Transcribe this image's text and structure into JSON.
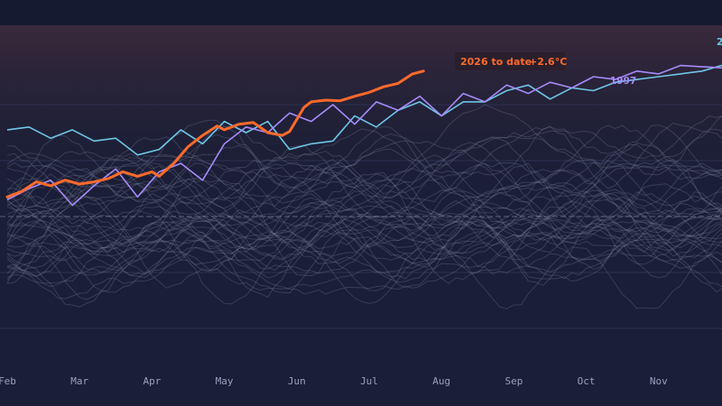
{
  "chart_data": {
    "type": "line",
    "x_labels": [
      "Feb",
      "Mar",
      "Apr",
      "May",
      "Jun",
      "Jul",
      "Aug",
      "Sep",
      "Oct",
      "Nov"
    ],
    "ylim": [
      -2,
      2.8
    ],
    "grid": true,
    "colors": {
      "background": "#1a1e36",
      "band_top": "#3b2a3c",
      "current": "#ff6a2a",
      "cyan_series": "#6ec6e6",
      "purple_series": "#a78bfa",
      "history": "#8a90a8",
      "grid": "#2c3150"
    },
    "highlight": {
      "name": "2026 to date",
      "label": "2026 to date",
      "value_label": "+2.6°C",
      "points": [
        [
          0,
          0.35
        ],
        [
          0.2,
          0.45
        ],
        [
          0.4,
          0.62
        ],
        [
          0.6,
          0.55
        ],
        [
          0.8,
          0.65
        ],
        [
          1.0,
          0.58
        ],
        [
          1.2,
          0.62
        ],
        [
          1.4,
          0.68
        ],
        [
          1.6,
          0.8
        ],
        [
          1.8,
          0.72
        ],
        [
          2.0,
          0.8
        ],
        [
          2.1,
          0.72
        ],
        [
          2.3,
          0.95
        ],
        [
          2.5,
          1.25
        ],
        [
          2.7,
          1.45
        ],
        [
          2.9,
          1.62
        ],
        [
          3.0,
          1.55
        ],
        [
          3.2,
          1.65
        ],
        [
          3.4,
          1.68
        ],
        [
          3.6,
          1.5
        ],
        [
          3.8,
          1.45
        ],
        [
          3.9,
          1.52
        ],
        [
          4.1,
          1.95
        ],
        [
          4.2,
          2.05
        ],
        [
          4.4,
          2.08
        ],
        [
          4.6,
          2.07
        ],
        [
          4.8,
          2.15
        ],
        [
          5.0,
          2.22
        ],
        [
          5.2,
          2.32
        ],
        [
          5.4,
          2.38
        ],
        [
          5.6,
          2.55
        ],
        [
          5.75,
          2.6
        ]
      ]
    },
    "series": [
      {
        "name": "cyan-year",
        "label": "2",
        "points": [
          [
            0,
            1.55
          ],
          [
            0.3,
            1.6
          ],
          [
            0.6,
            1.4
          ],
          [
            0.9,
            1.55
          ],
          [
            1.2,
            1.35
          ],
          [
            1.5,
            1.4
          ],
          [
            1.8,
            1.1
          ],
          [
            2.1,
            1.2
          ],
          [
            2.4,
            1.55
          ],
          [
            2.7,
            1.3
          ],
          [
            3.0,
            1.7
          ],
          [
            3.3,
            1.5
          ],
          [
            3.6,
            1.7
          ],
          [
            3.9,
            1.2
          ],
          [
            4.2,
            1.3
          ],
          [
            4.5,
            1.35
          ],
          [
            4.8,
            1.8
          ],
          [
            5.1,
            1.6
          ],
          [
            5.4,
            1.9
          ],
          [
            5.7,
            2.05
          ],
          [
            6.0,
            1.8
          ],
          [
            6.3,
            2.05
          ],
          [
            6.6,
            2.05
          ],
          [
            6.9,
            2.25
          ],
          [
            7.2,
            2.35
          ],
          [
            7.5,
            2.1
          ],
          [
            7.8,
            2.3
          ],
          [
            8.1,
            2.25
          ],
          [
            8.4,
            2.4
          ],
          [
            8.7,
            2.45
          ],
          [
            9.0,
            2.5
          ],
          [
            9.3,
            2.55
          ],
          [
            9.6,
            2.6
          ],
          [
            10.0,
            2.75
          ]
        ]
      },
      {
        "name": "1997",
        "label": "1997",
        "points": [
          [
            0,
            0.3
          ],
          [
            0.3,
            0.5
          ],
          [
            0.6,
            0.65
          ],
          [
            0.9,
            0.2
          ],
          [
            1.2,
            0.55
          ],
          [
            1.5,
            0.85
          ],
          [
            1.8,
            0.35
          ],
          [
            2.1,
            0.8
          ],
          [
            2.4,
            0.95
          ],
          [
            2.7,
            0.65
          ],
          [
            3.0,
            1.3
          ],
          [
            3.3,
            1.6
          ],
          [
            3.6,
            1.5
          ],
          [
            3.9,
            1.85
          ],
          [
            4.2,
            1.7
          ],
          [
            4.5,
            2.0
          ],
          [
            4.8,
            1.65
          ],
          [
            5.1,
            2.05
          ],
          [
            5.4,
            1.9
          ],
          [
            5.7,
            2.15
          ],
          [
            6.0,
            1.8
          ],
          [
            6.3,
            2.2
          ],
          [
            6.6,
            2.05
          ],
          [
            6.9,
            2.35
          ],
          [
            7.2,
            2.2
          ],
          [
            7.5,
            2.4
          ],
          [
            7.8,
            2.3
          ],
          [
            8.1,
            2.5
          ],
          [
            8.4,
            2.45
          ],
          [
            8.7,
            2.6
          ],
          [
            9.0,
            2.55
          ],
          [
            9.3,
            2.7
          ],
          [
            10.0,
            2.65
          ]
        ]
      }
    ]
  }
}
